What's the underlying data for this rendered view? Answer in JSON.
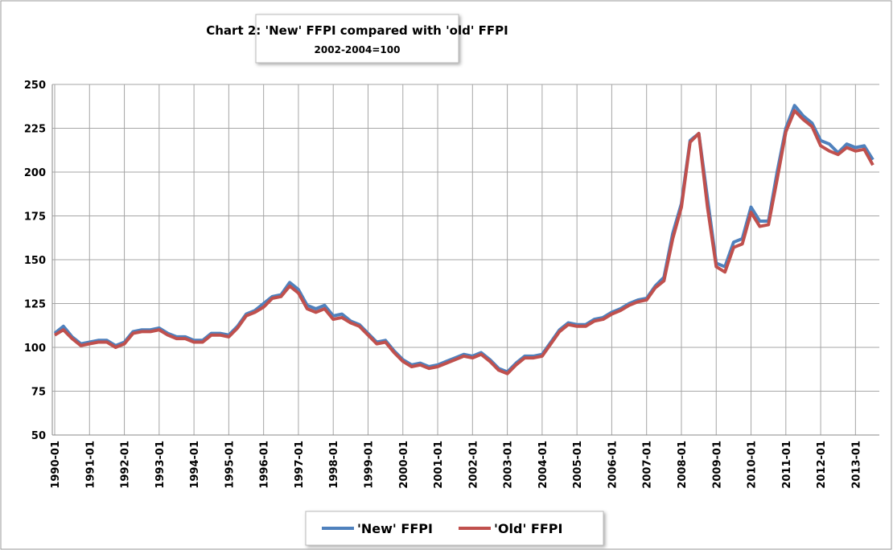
{
  "chart_data": {
    "type": "line",
    "title": "Chart  2:  'New' FFPI compared with 'old' FFPI",
    "subtitle": "2002-2004=100",
    "categories": [
      "1990-01",
      null,
      null,
      null,
      "1991-01",
      null,
      null,
      null,
      "1992-01",
      null,
      null,
      null,
      "1993-01",
      null,
      null,
      null,
      "1994-01",
      null,
      null,
      null,
      "1995-01",
      null,
      null,
      null,
      "1996-01",
      null,
      null,
      null,
      "1997-01",
      null,
      null,
      null,
      "1998-01",
      null,
      null,
      null,
      "1999-01",
      null,
      null,
      null,
      "2000-01",
      null,
      null,
      null,
      "2001-01",
      null,
      null,
      null,
      "2002-01",
      null,
      null,
      null,
      "2003-01",
      null,
      null,
      null,
      "2004-01",
      null,
      null,
      null,
      "2005-01",
      null,
      null,
      null,
      "2006-01",
      null,
      null,
      null,
      "2007-01",
      null,
      null,
      null,
      "2008-01",
      null,
      null,
      null,
      "2009-01",
      null,
      null,
      null,
      "2010-01",
      null,
      null,
      null,
      "2011-01",
      null,
      null,
      null,
      "2012-01",
      null,
      null,
      null,
      "2013-01",
      null,
      null
    ],
    "series": [
      {
        "name": "'New' FFPI",
        "color": "#4f81bd",
        "values": [
          108,
          112,
          106,
          102,
          103,
          104,
          104,
          101,
          103,
          109,
          110,
          110,
          111,
          108,
          106,
          106,
          104,
          104,
          108,
          108,
          107,
          112,
          119,
          121,
          125,
          129,
          130,
          137,
          133,
          124,
          122,
          124,
          118,
          119,
          115,
          113,
          108,
          103,
          104,
          98,
          93,
          90,
          91,
          89,
          90,
          92,
          94,
          96,
          95,
          97,
          93,
          88,
          86,
          91,
          95,
          95,
          96,
          103,
          110,
          114,
          113,
          113,
          116,
          117,
          120,
          122,
          125,
          127,
          128,
          135,
          140,
          165,
          182,
          218,
          222,
          185,
          148,
          146,
          160,
          162,
          180,
          172,
          172,
          200,
          225,
          238,
          232,
          228,
          218,
          216,
          211,
          216,
          214,
          215,
          207
        ]
      },
      {
        "name": "'Old' FFPI",
        "color": "#c0504d",
        "values": [
          107,
          110,
          105,
          101,
          102,
          103,
          103,
          100,
          102,
          108,
          109,
          109,
          110,
          107,
          105,
          105,
          103,
          103,
          107,
          107,
          106,
          111,
          118,
          120,
          123,
          128,
          129,
          135,
          131,
          122,
          120,
          122,
          116,
          117,
          114,
          112,
          107,
          102,
          103,
          97,
          92,
          89,
          90,
          88,
          89,
          91,
          93,
          95,
          94,
          96,
          92,
          87,
          85,
          90,
          94,
          94,
          95,
          102,
          109,
          113,
          112,
          112,
          115,
          116,
          119,
          121,
          124,
          126,
          127,
          134,
          138,
          162,
          180,
          217,
          222,
          180,
          146,
          143,
          157,
          159,
          177,
          169,
          170,
          196,
          223,
          235,
          230,
          226,
          215,
          212,
          210,
          214,
          212,
          213,
          204
        ]
      }
    ],
    "ylim": [
      50,
      250
    ],
    "yticks": [
      50,
      75,
      100,
      125,
      150,
      175,
      200,
      225,
      250
    ],
    "grid": true,
    "legend": "bottom"
  }
}
